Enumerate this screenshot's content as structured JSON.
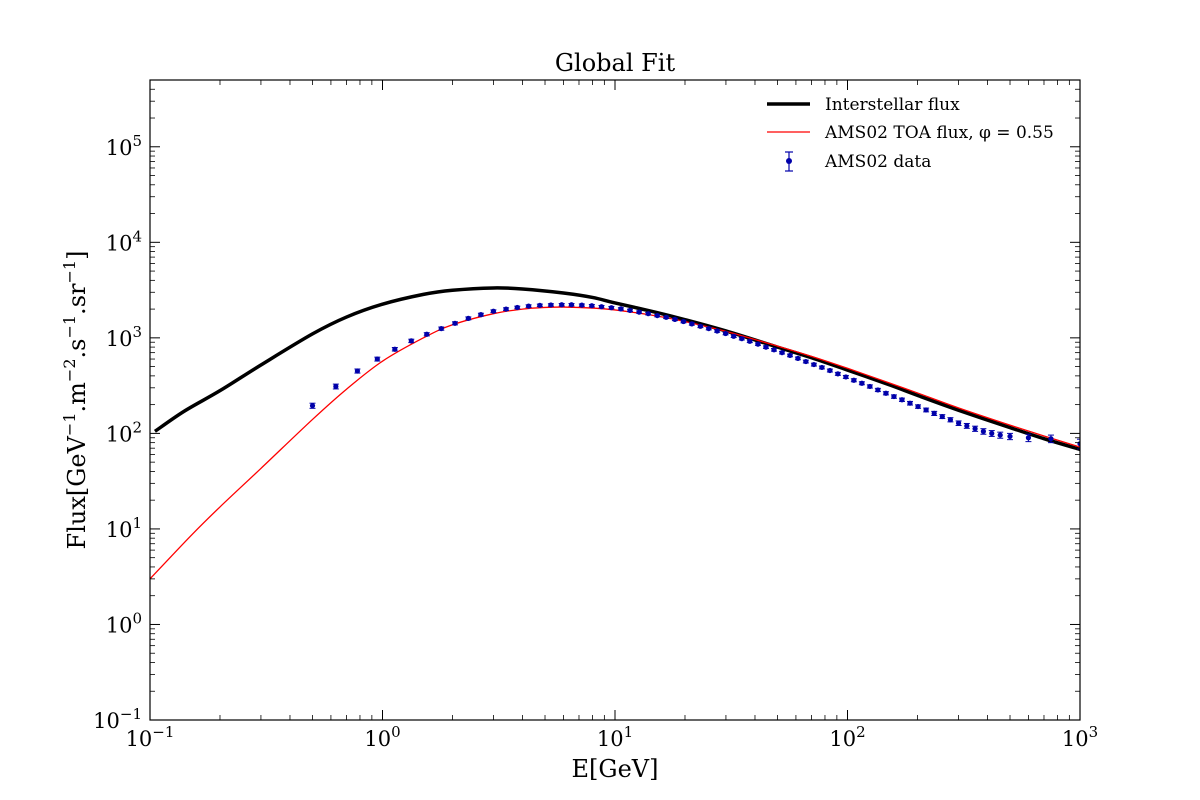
{
  "chart_data": {
    "type": "line",
    "title": "Global Fit",
    "xlabel": "E[GeV]",
    "ylabel": {
      "base": "Flux[GeV",
      "exp1": "−1",
      "mid1": ".m",
      "exp2": "−2",
      "mid2": ".s",
      "exp3": "−1",
      "mid3": ".sr",
      "exp4": "−1",
      "end": "]"
    },
    "xscale": "log",
    "yscale": "log",
    "xlim": [
      0.1,
      1000
    ],
    "ylim": [
      0.1,
      500000
    ],
    "x_ticks": [
      {
        "value": 0.1,
        "base": "10",
        "exp": "−1"
      },
      {
        "value": 1,
        "base": "10",
        "exp": "0"
      },
      {
        "value": 10,
        "base": "10",
        "exp": "1"
      },
      {
        "value": 100,
        "base": "10",
        "exp": "2"
      },
      {
        "value": 1000,
        "base": "10",
        "exp": "3"
      }
    ],
    "y_ticks": [
      {
        "value": 0.1,
        "base": "10",
        "exp": "−1"
      },
      {
        "value": 1,
        "base": "10",
        "exp": "0"
      },
      {
        "value": 10,
        "base": "10",
        "exp": "1"
      },
      {
        "value": 100,
        "base": "10",
        "exp": "2"
      },
      {
        "value": 1000,
        "base": "10",
        "exp": "3"
      },
      {
        "value": 10000,
        "base": "10",
        "exp": "4"
      },
      {
        "value": 100000,
        "base": "10",
        "exp": "5"
      }
    ],
    "legend_position": "top-right",
    "series": [
      {
        "name": "Interstellar flux",
        "kind": "line",
        "color": "#000000",
        "x": [
          0.105,
          0.14,
          0.2,
          0.3,
          0.5,
          0.7,
          1.0,
          1.5,
          2.0,
          3.0,
          4.0,
          6.0,
          8.0,
          10,
          15,
          20,
          30,
          50,
          70,
          100,
          150,
          200,
          300,
          500,
          700,
          1000
        ],
        "y": [
          105,
          170,
          280,
          520,
          1100,
          1650,
          2250,
          2850,
          3150,
          3330,
          3250,
          2950,
          2650,
          2320,
          1850,
          1550,
          1180,
          800,
          620,
          460,
          325,
          250,
          175,
          115,
          88,
          68
        ]
      },
      {
        "name": "AMS02 TOA flux, φ = 0.55",
        "kind": "line",
        "color": "#ff0000",
        "x": [
          0.1,
          0.15,
          0.2,
          0.3,
          0.5,
          0.7,
          1.0,
          1.5,
          2.0,
          3.0,
          4.0,
          5.0,
          6.0,
          8.0,
          10,
          15,
          20,
          30,
          50,
          70,
          100,
          150,
          200,
          300,
          500,
          700,
          1000
        ],
        "y": [
          3,
          8.5,
          17,
          43,
          140,
          290,
          570,
          1000,
          1370,
          1790,
          2000,
          2080,
          2100,
          2050,
          1960,
          1700,
          1480,
          1170,
          820,
          640,
          480,
          340,
          265,
          185,
          122,
          94,
          72
        ]
      },
      {
        "name": "AMS02 data",
        "kind": "errorbar",
        "color": "#0000aa",
        "x": [
          0.5,
          0.63,
          0.78,
          0.95,
          1.13,
          1.33,
          1.55,
          1.79,
          2.05,
          2.34,
          2.65,
          3.0,
          3.4,
          3.8,
          4.25,
          4.75,
          5.3,
          5.9,
          6.5,
          7.2,
          7.95,
          8.75,
          9.65,
          10.6,
          11.6,
          12.7,
          13.9,
          15.2,
          16.6,
          18.1,
          19.7,
          21.4,
          23.3,
          25.3,
          27.5,
          29.9,
          32.4,
          35.1,
          38.0,
          41.2,
          44.6,
          48.3,
          52.3,
          56.6,
          61.2,
          66.2,
          71.7,
          77.6,
          84.0,
          90.9,
          98.4,
          106.5,
          115.3,
          124.8,
          135.1,
          146.3,
          158.4,
          171.5,
          185.7,
          201.1,
          217.8,
          236.0,
          255.7,
          277.1,
          300.5,
          326,
          353.8,
          384.1,
          417.3,
          453.8,
          500,
          600,
          750,
          1000
        ],
        "y": [
          195,
          310,
          450,
          600,
          760,
          930,
          1090,
          1250,
          1420,
          1600,
          1750,
          1900,
          2000,
          2080,
          2150,
          2190,
          2210,
          2220,
          2220,
          2200,
          2170,
          2120,
          2070,
          2010,
          1940,
          1860,
          1790,
          1710,
          1640,
          1560,
          1480,
          1400,
          1320,
          1250,
          1180,
          1110,
          1040,
          980,
          920,
          860,
          800,
          750,
          700,
          655,
          610,
          565,
          525,
          490,
          455,
          420,
          390,
          360,
          335,
          310,
          285,
          263,
          243,
          225,
          207,
          191,
          176,
          162,
          150,
          139,
          128,
          120,
          112,
          105,
          100,
          96,
          93,
          90,
          88,
          78
        ],
        "error": [
          12,
          18,
          22,
          28,
          32,
          38,
          42,
          48,
          52,
          56,
          60,
          62,
          64,
          66,
          66,
          66,
          66,
          66,
          66,
          64,
          63,
          62,
          60,
          58,
          56,
          54,
          52,
          50,
          48,
          46,
          44,
          42,
          40,
          38,
          36,
          34,
          32,
          30,
          28,
          26,
          25,
          24,
          22,
          21,
          20,
          19,
          18,
          17,
          16,
          15,
          14,
          13,
          12,
          12,
          11,
          10,
          10,
          9,
          9,
          8,
          8,
          8,
          7,
          7,
          7,
          7,
          7,
          7,
          7,
          7,
          7,
          8,
          8,
          9
        ]
      }
    ]
  }
}
